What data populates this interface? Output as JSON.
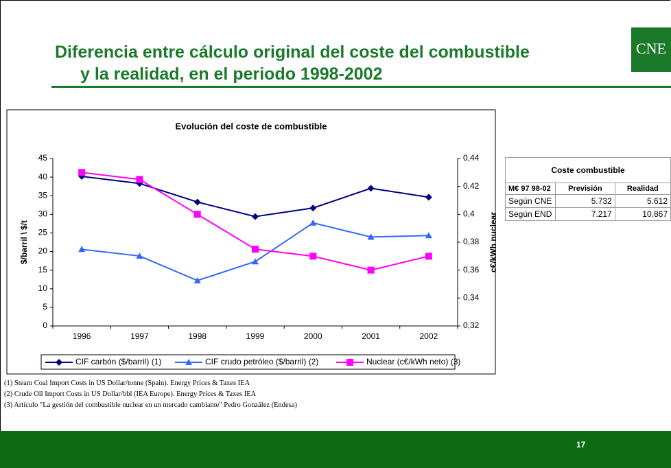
{
  "slide": {
    "title_line1": "Diferencia entre cálculo original del coste del combustible",
    "title_line2": "y la realidad, en el periodo 1998-2002",
    "logo": "CNE",
    "page_number": "17"
  },
  "chart_data": {
    "type": "line",
    "title": "Evolución del coste de combustible",
    "categories": [
      "1996",
      "1997",
      "1998",
      "1999",
      "2000",
      "2001",
      "2002"
    ],
    "series": [
      {
        "name": "CIF carbón ($/barril)  (1)",
        "color": "#000080",
        "marker": "diamond",
        "values": [
          40.2,
          38.3,
          33.3,
          29.4,
          31.7,
          37.0,
          34.6
        ]
      },
      {
        "name": "CIF crudo petróleo ($/barril)  (2)",
        "color": "#3366ff",
        "marker": "triangle",
        "values": [
          20.6,
          18.8,
          12.2,
          17.3,
          27.7,
          23.9,
          24.3
        ]
      },
      {
        "name": "Nuclear (c€/kWh neto)  (3)",
        "color": "#ff00ff",
        "marker": "square",
        "axis": "y2",
        "values": [
          0.43,
          0.425,
          0.4,
          0.375,
          0.37,
          0.36,
          0.37
        ]
      }
    ],
    "ylabel": "$/barril \\ $/t",
    "y2label": "c€/kWh nuclear",
    "ylim": [
      0,
      45
    ],
    "yticks": [
      0,
      5,
      10,
      15,
      20,
      25,
      30,
      35,
      40,
      45
    ],
    "y2lim": [
      0.32,
      0.44
    ],
    "y2ticks": [
      {
        "value": 0.32,
        "label": "0,32"
      },
      {
        "value": 0.34,
        "label": "0,34"
      },
      {
        "value": 0.36,
        "label": "0,36"
      },
      {
        "value": 0.38,
        "label": "0,38"
      },
      {
        "value": 0.4,
        "label": "0,4"
      },
      {
        "value": 0.42,
        "label": "0,42"
      },
      {
        "value": 0.44,
        "label": "0,44"
      }
    ],
    "grid": false,
    "legend": "bottom"
  },
  "table": {
    "title": "Coste combustible",
    "columns": [
      "M€ 97 98-02",
      "Previsión",
      "Realidad"
    ],
    "rows": [
      [
        "Según CNE",
        "5.732",
        "5.612"
      ],
      [
        "Según END",
        "7.217",
        "10.867"
      ]
    ]
  },
  "footnotes": [
    "(1) Steam Coal Import Costs in US Dollar/tonne (Spain). Energy Prices & Taxes IEA",
    "(2) Crude Oil Import Costs in US Dollar/bbl (IEA Europe). Energy Prices & Taxes IEA",
    "(3) Artículo \"La gestión del combustible nuclear en un mercado cambiante\" Pedro González (Endesa)"
  ]
}
